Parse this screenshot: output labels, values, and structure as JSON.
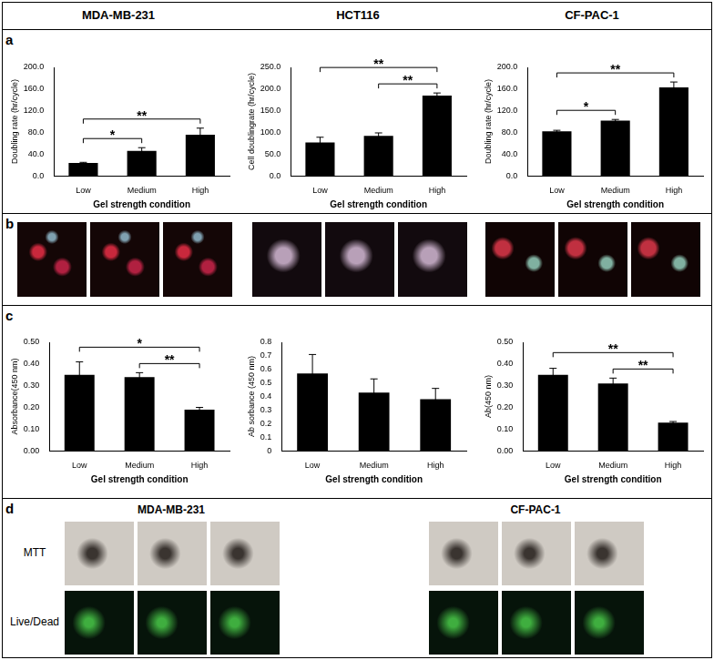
{
  "column_headers": [
    "MDA-MB-231",
    "HCT116",
    "CF-PAC-1"
  ],
  "panel_labels": [
    "a",
    "b",
    "c",
    "d"
  ],
  "panel_d": {
    "columns": [
      "MDA-MB-231",
      "CF-PAC-1"
    ],
    "rows": [
      "MTT",
      "Live/Dead"
    ]
  },
  "chart_data": [
    {
      "type": "bar",
      "x_label": "Gel strength condition",
      "y_label": "Doubling rate (hr/cycle)",
      "categories": [
        "Low",
        "Medium",
        "High"
      ],
      "values": [
        24,
        46,
        76
      ],
      "errors": [
        1,
        6,
        12
      ],
      "color": "#000000",
      "ylim": [
        0,
        200
      ],
      "yticks": [
        {
          "value": 0,
          "label": "0.0"
        },
        {
          "value": 40,
          "label": "40.0"
        },
        {
          "value": 80,
          "label": "80.0"
        },
        {
          "value": 120,
          "label": "120.0"
        },
        {
          "value": 160,
          "label": "160.0"
        },
        {
          "value": 200,
          "label": "200.0"
        }
      ],
      "grid": false,
      "significance": [
        {
          "from": "Low",
          "to": "Medium",
          "label": "*"
        },
        {
          "from": "Low",
          "to": "High",
          "label": "**"
        }
      ]
    },
    {
      "type": "bar",
      "x_label": "Gel strength condition",
      "y_label": "Cell doublingrate (hr/cycle)",
      "categories": [
        "Low",
        "Medium",
        "High"
      ],
      "values": [
        77,
        92,
        185
      ],
      "errors": [
        12,
        7,
        6
      ],
      "color": "#000000",
      "ylim": [
        0,
        250
      ],
      "yticks": [
        {
          "value": 0,
          "label": "0.0"
        },
        {
          "value": 50,
          "label": "50.0"
        },
        {
          "value": 100,
          "label": "100.0"
        },
        {
          "value": 150,
          "label": "150.0"
        },
        {
          "value": 200,
          "label": "200.0"
        },
        {
          "value": 250,
          "label": "250.0"
        }
      ],
      "grid": false,
      "significance": [
        {
          "from": "Medium",
          "to": "High",
          "label": "**"
        },
        {
          "from": "Low",
          "to": "High",
          "label": "**"
        }
      ]
    },
    {
      "type": "bar",
      "x_label": "Gel strength condition",
      "y_label": "Doubling rate (hr/cycle)",
      "categories": [
        "Low",
        "Medium",
        "High"
      ],
      "values": [
        82,
        102,
        163
      ],
      "errors": [
        2,
        2,
        10
      ],
      "color": "#000000",
      "ylim": [
        0,
        200
      ],
      "yticks": [
        {
          "value": 0,
          "label": "0.0"
        },
        {
          "value": 40,
          "label": "40.0"
        },
        {
          "value": 80,
          "label": "80.0"
        },
        {
          "value": 120,
          "label": "120.0"
        },
        {
          "value": 160,
          "label": "160.0"
        },
        {
          "value": 200,
          "label": "200.0"
        }
      ],
      "grid": false,
      "significance": [
        {
          "from": "Low",
          "to": "Medium",
          "label": "*"
        },
        {
          "from": "Low",
          "to": "High",
          "label": "**"
        }
      ]
    },
    {
      "type": "bar",
      "x_label": "Gel strength condition",
      "y_label": "Absorbance(450 nm)",
      "categories": [
        "Low",
        "Medium",
        "High"
      ],
      "values": [
        0.35,
        0.34,
        0.19
      ],
      "errors": [
        0.06,
        0.02,
        0.01
      ],
      "color": "#000000",
      "ylim": [
        0,
        0.5
      ],
      "yticks": [
        {
          "value": 0,
          "label": "0.00"
        },
        {
          "value": 0.1,
          "label": "0.10"
        },
        {
          "value": 0.2,
          "label": "0.20"
        },
        {
          "value": 0.3,
          "label": "0.30"
        },
        {
          "value": 0.4,
          "label": "0.40"
        },
        {
          "value": 0.5,
          "label": "0.50"
        }
      ],
      "grid": false,
      "significance": [
        {
          "from": "Medium",
          "to": "High",
          "label": "**"
        },
        {
          "from": "Low",
          "to": "High",
          "label": "*"
        }
      ]
    },
    {
      "type": "bar",
      "x_label": "Gel strength condition",
      "y_label": "Ab sorbance (450 nm)",
      "categories": [
        "Low",
        "Medium",
        "High"
      ],
      "values": [
        0.57,
        0.43,
        0.38
      ],
      "errors": [
        0.14,
        0.1,
        0.08
      ],
      "color": "#000000",
      "ylim": [
        0,
        0.8
      ],
      "yticks": [
        0,
        0.1,
        0.2,
        0.3,
        0.4,
        0.5,
        0.6,
        0.7,
        0.8
      ],
      "grid": false,
      "significance": []
    },
    {
      "type": "bar",
      "x_label": "Gel strength condition",
      "y_label": "Ab(450 nm)",
      "categories": [
        "Low",
        "Medium",
        "High"
      ],
      "values": [
        0.35,
        0.31,
        0.13
      ],
      "errors": [
        0.03,
        0.025,
        0.005
      ],
      "color": "#000000",
      "ylim": [
        0,
        0.5
      ],
      "yticks": [
        {
          "value": 0,
          "label": "0.00"
        },
        {
          "value": 0.1,
          "label": "0.10"
        },
        {
          "value": 0.2,
          "label": "0.20"
        },
        {
          "value": 0.3,
          "label": "0.30"
        },
        {
          "value": 0.4,
          "label": "0.40"
        },
        {
          "value": 0.5,
          "label": "0.50"
        }
      ],
      "grid": false,
      "significance": [
        {
          "from": "Medium",
          "to": "High",
          "label": "**"
        },
        {
          "from": "Low",
          "to": "High",
          "label": "**"
        }
      ]
    }
  ]
}
